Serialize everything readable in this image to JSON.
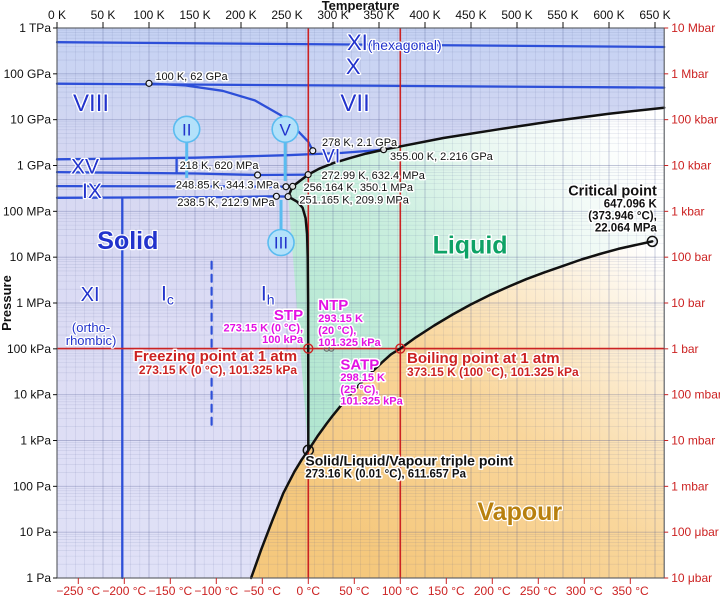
{
  "figure": {
    "top_axis_title": "Temperature",
    "left_axis_title": "Pressure"
  },
  "axes": {
    "top": {
      "unit": "K",
      "values": [
        0,
        50,
        100,
        150,
        200,
        250,
        300,
        350,
        400,
        450,
        500,
        550,
        600,
        650
      ],
      "labels": [
        "0 K",
        "50 K",
        "100 K",
        "150 K",
        "200 K",
        "250 K",
        "300 K",
        "350 K",
        "400 K",
        "450 K",
        "500 K",
        "550 K",
        "600 K",
        "650 K"
      ],
      "color": "#111111"
    },
    "bottom": {
      "unit": "°C",
      "values": [
        -250,
        -200,
        -150,
        -100,
        -50,
        0,
        50,
        100,
        150,
        200,
        250,
        300,
        350
      ],
      "labels": [
        "−250 °C",
        "−200 °C",
        "−150 °C",
        "−100 °C",
        "−50 °C",
        "0 °C",
        "50 °C",
        "100 °C",
        "150 °C",
        "200 °C",
        "250 °C",
        "300 °C",
        "350 °C"
      ],
      "color": "#cc2222"
    },
    "left": {
      "labels": [
        "1 TPa",
        "100 GPa",
        "10 GPa",
        "1 GPa",
        "100 MPa",
        "10 MPa",
        "1 MPa",
        "100 kPa",
        "10 kPa",
        "1 kPa",
        "100 Pa",
        "10 Pa",
        "1 Pa"
      ],
      "color": "#111111"
    },
    "right": {
      "labels": [
        "10 Mbar",
        "1 Mbar",
        "100 kbar",
        "10 kbar",
        "1 kbar",
        "100 bar",
        "10 bar",
        "1 bar",
        "100 mbar",
        "10 mbar",
        "1 mbar",
        "100 μbar",
        "10 μbar"
      ],
      "color": "#cc2222"
    }
  },
  "chart_data": {
    "type": "phase-diagram",
    "x_axis": {
      "label": "Temperature",
      "unit": "K",
      "range": [
        0,
        660
      ],
      "scale": "linear"
    },
    "y_axis": {
      "label": "Pressure",
      "unit": "Pa",
      "range_log10": [
        0,
        12
      ],
      "scale": "log"
    },
    "colors": {
      "blue_line": "#2d4fd8",
      "cyan_line": "#5bbcf0",
      "cyan_fill": "#b3e1fa",
      "black_line": "#111111",
      "red": "#cc2222",
      "magenta": "#e311e3",
      "blue_text": "#2233cc",
      "green_text": "#0ea266",
      "vapour_text": "#b8800f",
      "solid_gradient": [
        "#c5d2f3",
        "#d6d8f2",
        "#dcdcf4",
        "#e0e1f7"
      ],
      "liquid_gradient": [
        "#b2e6d0",
        "#c8eedd",
        "#eef9f4",
        "#ffffff"
      ],
      "vapour_gradient": [
        "#f5c87d",
        "#f9d69b",
        "#fdf4e4",
        "#ffffff"
      ]
    },
    "boundaries": {
      "sublimation": [
        [
          211,
          0
        ],
        [
          222,
          0.62
        ],
        [
          234,
          1.25
        ],
        [
          246,
          1.85
        ],
        [
          258,
          2.32
        ],
        [
          266,
          2.58
        ],
        [
          273.16,
          2.787
        ]
      ],
      "melting_Ih": [
        [
          273.16,
          2.787
        ],
        [
          273.12,
          4.0
        ],
        [
          273.05,
          5.0
        ],
        [
          272.9,
          6.0
        ],
        [
          272.5,
          7.0
        ],
        [
          271.8,
          7.5
        ],
        [
          270.2,
          7.85
        ],
        [
          267,
          8.08
        ],
        [
          261,
          8.21
        ],
        [
          255,
          8.28
        ],
        [
          251.165,
          8.322
        ]
      ],
      "stair": [
        [
          251.165,
          8.322
        ],
        [
          256.164,
          8.5442
        ],
        [
          272.99,
          8.801
        ]
      ],
      "melting_VI": [
        [
          272.99,
          8.801
        ],
        [
          285,
          8.93
        ],
        [
          300,
          9.05
        ],
        [
          318,
          9.16
        ],
        [
          336,
          9.26
        ],
        [
          355,
          9.3456
        ]
      ],
      "melting_VII": [
        [
          355,
          9.3456
        ],
        [
          420,
          9.6
        ],
        [
          480,
          9.79
        ],
        [
          540,
          9.97
        ],
        [
          600,
          10.13
        ],
        [
          660,
          10.26
        ]
      ],
      "vaporization": [
        [
          273.16,
          2.787
        ],
        [
          283,
          3.09
        ],
        [
          293.15,
          3.37
        ],
        [
          300,
          3.55
        ],
        [
          313,
          3.87
        ],
        [
          323.15,
          4.1
        ],
        [
          333,
          4.31
        ],
        [
          343,
          4.51
        ],
        [
          353,
          4.7
        ],
        [
          363,
          4.88
        ],
        [
          373.15,
          5.006
        ],
        [
          390,
          5.25
        ],
        [
          410,
          5.51
        ],
        [
          430,
          5.75
        ],
        [
          450,
          5.97
        ],
        [
          470,
          6.17
        ],
        [
          490,
          6.35
        ],
        [
          510,
          6.52
        ],
        [
          530,
          6.67
        ],
        [
          550,
          6.81
        ],
        [
          570,
          6.95
        ],
        [
          590,
          7.07
        ],
        [
          610,
          7.18
        ],
        [
          630,
          7.27
        ],
        [
          647.096,
          7.3437
        ]
      ],
      "blue_lines": [
        [
          [
            0,
            11.69
          ],
          [
            660,
            11.585
          ]
        ],
        [
          [
            0,
            10.785
          ],
          [
            660,
            10.7
          ]
        ],
        [
          [
            100,
            10.79
          ],
          [
            140,
            10.745
          ],
          [
            180,
            10.63
          ],
          [
            215,
            10.42
          ],
          [
            243,
            10.1
          ],
          [
            262,
            9.75
          ],
          [
            273,
            9.52
          ],
          [
            278,
            9.322
          ]
        ],
        [
          [
            0,
            9.135
          ],
          [
            150,
            9.17
          ],
          [
            250,
            9.225
          ],
          [
            310,
            9.275
          ],
          [
            355,
            9.3456
          ]
        ],
        [
          [
            0,
            8.855
          ],
          [
            150,
            8.825
          ],
          [
            218,
            8.7924
          ],
          [
            272.99,
            8.801
          ]
        ],
        [
          [
            0,
            8.55
          ],
          [
            180,
            8.545
          ],
          [
            248.85,
            8.5369
          ]
        ],
        [
          [
            0,
            8.295
          ],
          [
            180,
            8.31
          ],
          [
            238.5,
            8.3282
          ]
        ],
        [
          [
            238.5,
            8.3282
          ],
          [
            251.165,
            8.322
          ]
        ],
        [
          [
            248.85,
            8.5369
          ],
          [
            256.164,
            8.5442
          ]
        ],
        [
          [
            130,
            9.135
          ],
          [
            130,
            8.855
          ]
        ],
        [
          [
            71,
            8.295
          ],
          [
            71,
            0
          ]
        ]
      ],
      "dashed_blue": [
        [
          168,
          6.9
        ],
        [
          168,
          3.25
        ]
      ]
    },
    "reference_lines": {
      "vertical_T_K": [
        273.15,
        373.15
      ],
      "horizontal_log10Pa": 5.0057
    },
    "markers": {
      "large_black": [
        {
          "T": 273.16,
          "log": 2.7865
        },
        {
          "T": 647.096,
          "log": 7.3437
        }
      ],
      "small_black": [
        {
          "T": 100,
          "log": 10.792
        },
        {
          "T": 278,
          "log": 9.322
        },
        {
          "T": 355,
          "log": 9.3456
        },
        {
          "T": 272.99,
          "log": 8.801
        },
        {
          "T": 256.164,
          "log": 8.5442
        },
        {
          "T": 251.165,
          "log": 8.322
        },
        {
          "T": 248.85,
          "log": 8.5369
        },
        {
          "T": 238.5,
          "log": 8.3282
        },
        {
          "T": 218,
          "log": 8.7924
        }
      ],
      "red_rings": [
        {
          "T": 273.15,
          "log": 5.0057
        },
        {
          "T": 373.15,
          "log": 5.0057
        }
      ],
      "grey_rings": [
        {
          "T": 293.15,
          "log": 5.0057
        },
        {
          "T": 298.15,
          "log": 5.0057
        }
      ]
    },
    "phase_labels": [
      {
        "text": "XI",
        "suffix": "(hexagonal)",
        "T": 315.2,
        "log": 11.52,
        "size": 22,
        "suffix_size": 14,
        "anchor": "start",
        "bold": false
      },
      {
        "text": "X",
        "T": 322,
        "log": 11.0,
        "size": 22,
        "anchor": "middle",
        "bold": false
      },
      {
        "text": "VIII",
        "T": 37,
        "log": 10.19,
        "size": 24,
        "anchor": "middle",
        "bold": false
      },
      {
        "text": "VII",
        "T": 324,
        "log": 10.19,
        "size": 24,
        "anchor": "middle",
        "bold": false
      },
      {
        "text": "XV",
        "T": 30.5,
        "log": 8.83,
        "size": 21,
        "anchor": "middle",
        "bold": false
      },
      {
        "text": "IX",
        "T": 38,
        "log": 8.29,
        "size": 21,
        "anchor": "middle",
        "bold": false
      },
      {
        "text": "VI",
        "T": 298,
        "log": 9.07,
        "size": 19,
        "anchor": "middle",
        "bold": false
      },
      {
        "text": "Solid",
        "T": 77,
        "log": 7.18,
        "size": 25,
        "anchor": "middle",
        "bold": true,
        "color_key": "blue_text"
      },
      {
        "text": "Liquid",
        "T": 449,
        "log": 7.08,
        "size": 25,
        "anchor": "middle",
        "bold": true,
        "color_key": "green_text"
      },
      {
        "text": "Vapour",
        "T": 503,
        "log": 1.27,
        "size": 25,
        "anchor": "middle",
        "bold": true,
        "color_key": "vapour_text"
      },
      {
        "text": "XI",
        "T": 36,
        "log": 6.04,
        "size": 20,
        "anchor": "middle",
        "bold": false
      },
      {
        "text": "(ortho-",
        "T": 37,
        "log": 5.37,
        "size": 13,
        "anchor": "middle",
        "bold": false
      },
      {
        "text": "rhombic)",
        "T": 37,
        "log": 5.08,
        "size": 13,
        "anchor": "middle",
        "bold": false
      },
      {
        "text": "I",
        "sub": "c",
        "T": 120,
        "log": 6.05,
        "size": 21,
        "sub_size": 14,
        "anchor": "middle",
        "bold": false
      },
      {
        "text": "I",
        "sub": "h",
        "T": 229,
        "log": 6.05,
        "size": 21,
        "sub_size": 14,
        "anchor": "middle",
        "bold": false
      }
    ],
    "circled_labels": [
      {
        "text": "II",
        "T": 141,
        "log": 9.79,
        "leader_from": 9.5,
        "leader_to": 8.73
      },
      {
        "text": "V",
        "T": 248,
        "log": 9.79,
        "leader_from": 9.5,
        "leader_to": 8.66
      },
      {
        "text": "III",
        "T": 243.5,
        "log": 7.32,
        "leader_from": 7.6,
        "leader_to": 8.25
      }
    ],
    "point_annotations": [
      {
        "text": "100 K, 62 GPa",
        "T": 107,
        "log": 10.87,
        "anchor": "start"
      },
      {
        "text": "278 K, 2.1 GPa",
        "T": 288,
        "log": 9.43,
        "anchor": "start"
      },
      {
        "text": "355.00 K, 2.216 GPa",
        "T": 362,
        "log": 9.12,
        "anchor": "start"
      },
      {
        "text": "272.99 K, 632.4 MPa",
        "T": 287.5,
        "log": 8.7,
        "anchor": "start"
      },
      {
        "text": "256.164 K, 350.1 MPa",
        "T": 268,
        "log": 8.44,
        "anchor": "start"
      },
      {
        "text": "251.165 K, 209.9 MPa",
        "T": 263.5,
        "log": 8.17,
        "anchor": "start"
      },
      {
        "text": "218 K, 620 MPa",
        "T": 219,
        "log": 8.92,
        "anchor": "end"
      },
      {
        "text": "248.85 K, 344.3 MPa",
        "T": 241.5,
        "log": 8.5,
        "anchor": "end"
      },
      {
        "text": "238.5 K, 212.9 MPa",
        "T": 236.5,
        "log": 8.12,
        "anchor": "end"
      }
    ],
    "text_blocks": [
      {
        "id": "critical-point",
        "T": 652,
        "anchor": "end",
        "color_key": "black_line",
        "lines": [
          {
            "text": "Critical point",
            "log": 8.35,
            "size": 14.5,
            "bold": true
          },
          {
            "text": "647.096 K",
            "log": 8.08,
            "size": 11.5,
            "bold": true
          },
          {
            "text": "(373.946 °C),",
            "log": 7.82,
            "size": 11.5,
            "bold": true
          },
          {
            "text": "22.064 MPa",
            "log": 7.56,
            "size": 11.5,
            "bold": true
          }
        ]
      },
      {
        "id": "triple-point",
        "T": 270,
        "anchor": "start",
        "color_key": "black_line",
        "lines": [
          {
            "text": "Solid/Liquid/Vapour triple point",
            "log": 2.45,
            "size": 14,
            "bold": true
          },
          {
            "text": "273.16 K (0.01 °C), 611.657 Pa",
            "log": 2.19,
            "size": 11.5,
            "bold": true
          }
        ]
      },
      {
        "id": "stp",
        "T": 267.5,
        "anchor": "end",
        "color_key": "magenta",
        "lines": [
          {
            "text": "STP",
            "log": 5.63,
            "size": 15,
            "bold": true
          },
          {
            "text": "273.15 K (0 °C),",
            "log": 5.38,
            "size": 11,
            "bold": true
          },
          {
            "text": "100 kPa",
            "log": 5.13,
            "size": 11,
            "bold": true
          }
        ]
      },
      {
        "id": "ntp",
        "T": 284,
        "anchor": "start",
        "color_key": "magenta",
        "lines": [
          {
            "text": "NTP",
            "log": 5.85,
            "size": 15,
            "bold": true
          },
          {
            "text": "293.15 K",
            "log": 5.58,
            "size": 11,
            "bold": true
          },
          {
            "text": "(20 °C),",
            "log": 5.32,
            "size": 11,
            "bold": true
          },
          {
            "text": "101.325 kPa",
            "log": 5.06,
            "size": 11,
            "bold": true
          }
        ]
      },
      {
        "id": "satp",
        "T": 308,
        "anchor": "start",
        "color_key": "magenta",
        "lines": [
          {
            "text": "SATP",
            "log": 4.55,
            "size": 15,
            "bold": true
          },
          {
            "text": "298.15 K",
            "log": 4.3,
            "size": 11,
            "bold": true
          },
          {
            "text": "(25 °C),",
            "log": 4.04,
            "size": 11,
            "bold": true
          },
          {
            "text": "101.325 kPa",
            "log": 3.78,
            "size": 11,
            "bold": true
          }
        ]
      },
      {
        "id": "freezing-point",
        "T": 261,
        "anchor": "end",
        "color_key": "red",
        "lines": [
          {
            "text": "Freezing point at 1 atm",
            "log": 4.73,
            "size": 15,
            "bold": true
          },
          {
            "text": "273.15 K (0 °C), 101.325 kPa",
            "log": 4.45,
            "size": 12,
            "bold": true
          }
        ]
      },
      {
        "id": "boiling-point",
        "T": 380.5,
        "anchor": "start",
        "color_key": "red",
        "lines": [
          {
            "text": "Boiling point at 1 atm",
            "log": 4.69,
            "size": 15,
            "bold": true
          },
          {
            "text": "373.15 K (100 °C), 101.325 kPa",
            "log": 4.41,
            "size": 12,
            "bold": true
          }
        ]
      }
    ]
  }
}
